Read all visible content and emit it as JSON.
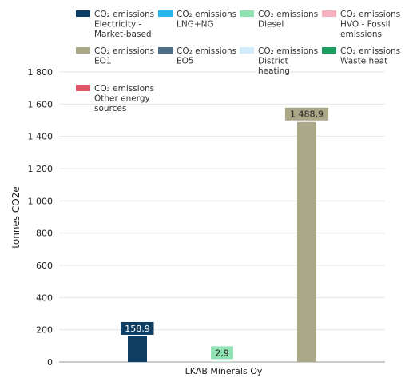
{
  "chart_data": {
    "type": "bar",
    "categories": [
      "LKAB Minerals Oy"
    ],
    "ylabel": "tonnes CO2e",
    "ylim": [
      0,
      1800
    ],
    "yticks": [
      0,
      200,
      400,
      600,
      800,
      1000,
      1200,
      1400,
      1600,
      1800
    ],
    "ytick_labels": [
      "0",
      "200",
      "400",
      "600",
      "800",
      "1 000",
      "1 200",
      "1 400",
      "1 600",
      "1 800"
    ],
    "grid": true,
    "legend_position": "top",
    "series": [
      {
        "name": "CO₂ emissions Electricity - Market-based",
        "color": "#0e3e63",
        "values": [
          158.9
        ],
        "label": "158,9"
      },
      {
        "name": "CO₂ emissions LNG+NG",
        "color": "#2bb5e8",
        "values": [
          null
        ],
        "label": ""
      },
      {
        "name": "CO₂ emissions Diesel",
        "color": "#8fe3b3",
        "values": [
          2.9
        ],
        "label": "2,9"
      },
      {
        "name": "CO₂ emissions HVO - Fossil emissions",
        "color": "#f6b2c0",
        "values": [
          null
        ],
        "label": ""
      },
      {
        "name": "CO₂ emissions EO1",
        "color": "#aba88a",
        "values": [
          1488.9
        ],
        "label": "1 488,9"
      },
      {
        "name": "CO₂ emissions EO5",
        "color": "#4d6f88",
        "values": [
          null
        ],
        "label": ""
      },
      {
        "name": "CO₂ emissions District heating",
        "color": "#d3ecfb",
        "values": [
          null
        ],
        "label": ""
      },
      {
        "name": "CO₂ emissions Waste heat",
        "color": "#1f9e64",
        "values": [
          null
        ],
        "label": ""
      },
      {
        "name": "CO₂ emissions Other energy sources",
        "color": "#e05565",
        "values": [
          null
        ],
        "label": ""
      }
    ]
  }
}
